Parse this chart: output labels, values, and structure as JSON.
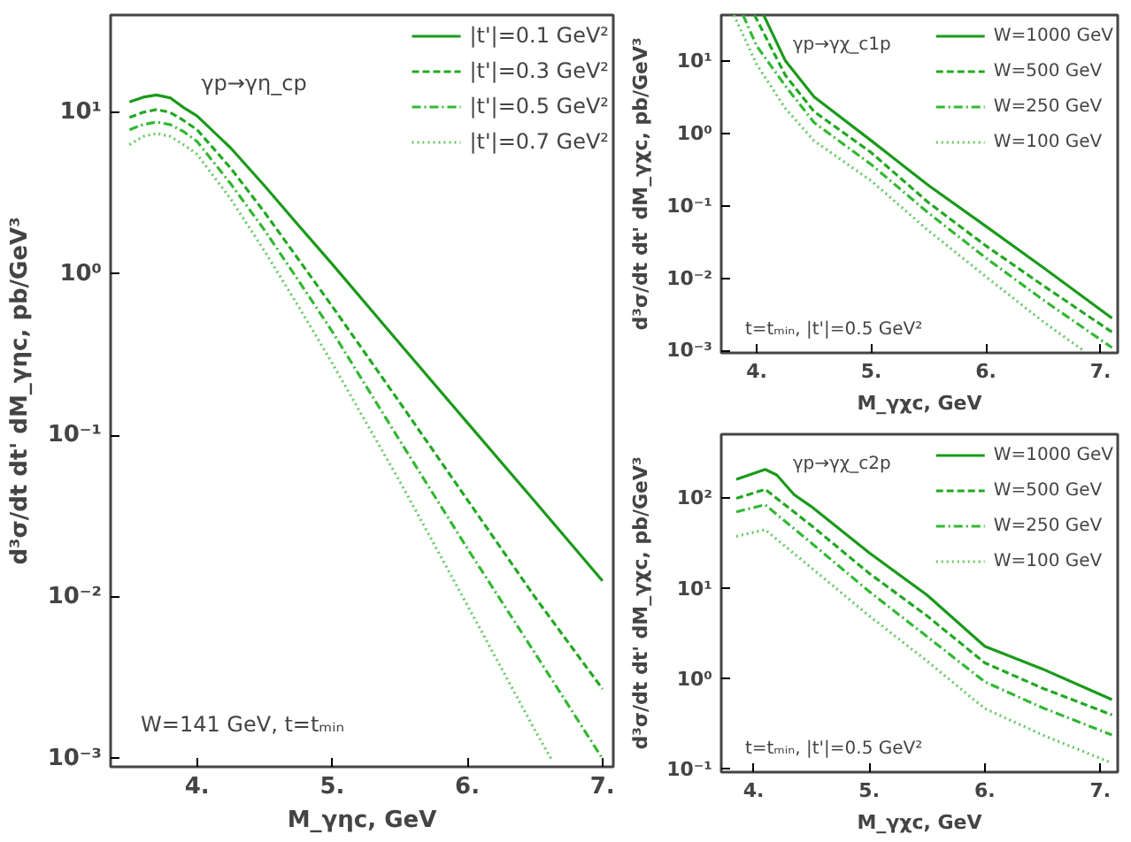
{
  "chart_data": [
    {
      "type": "line",
      "xlabel": "M_γηc, GeV",
      "ylabel": "d³σ/dt dt' dM_γηc, pb/GeV³",
      "log": "y",
      "legend": "top right",
      "annotations": [
        "γp→γη_cp",
        "W=141 GeV, t=tₘᵢₙ"
      ],
      "xlim": [
        3.36,
        7.08
      ],
      "ylim": [
        0.00089,
        40
      ],
      "xticks": [
        {
          "value": 4,
          "label": "4."
        },
        {
          "value": 5,
          "label": "5."
        },
        {
          "value": 6,
          "label": "6."
        },
        {
          "value": 7,
          "label": "7."
        }
      ],
      "yticks": [
        {
          "value": 0.001,
          "label": "10⁻³"
        },
        {
          "value": 0.01,
          "label": "10⁻²"
        },
        {
          "value": 0.1,
          "label": "10⁻¹"
        },
        {
          "value": 1,
          "label": "10⁰"
        },
        {
          "value": 10,
          "label": "10¹"
        }
      ],
      "x": [
        3.5,
        3.6,
        3.7,
        3.8,
        3.9,
        4.0,
        4.25,
        4.5,
        4.75,
        5.0,
        5.5,
        6.0,
        6.5,
        7.0
      ],
      "series": [
        {
          "name": "|t'|=0.1 GeV²",
          "color": "#1a9a1a",
          "line_style": "solid",
          "values": [
            11.6,
            12.4,
            12.8,
            12.3,
            10.7,
            9.5,
            6.0,
            3.5,
            2.0,
            1.15,
            0.37,
            0.12,
            0.039,
            0.0126
          ]
        },
        {
          "name": "|t'|=0.3 GeV²",
          "color": "#22a822",
          "line_style": "dashed",
          "values": [
            9.3,
            10.0,
            10.4,
            10.0,
            8.9,
            7.8,
            4.5,
            2.4,
            1.23,
            0.63,
            0.16,
            0.04,
            0.01,
            0.0027
          ]
        },
        {
          "name": "|t'|=0.5 GeV²",
          "color": "#33b833",
          "line_style": "dashdot",
          "values": [
            7.8,
            8.4,
            8.7,
            8.4,
            7.6,
            6.6,
            3.6,
            1.86,
            0.91,
            0.44,
            0.093,
            0.02,
            0.0045,
            0.001
          ]
        },
        {
          "name": "|t'|=0.7 GeV²",
          "color": "#66c866",
          "line_style": "dotted",
          "x": [
            3.5,
            3.6,
            3.7,
            3.8,
            3.9,
            4.0,
            4.25,
            4.5,
            4.75,
            5.0,
            5.5,
            6.0,
            6.5,
            6.62
          ],
          "values": [
            6.3,
            7.1,
            7.4,
            7.1,
            6.3,
            5.5,
            2.9,
            1.38,
            0.63,
            0.28,
            0.052,
            0.0089,
            0.0015,
            0.001
          ]
        }
      ]
    },
    {
      "type": "line",
      "xlabel": "M_γχc, GeV",
      "ylabel": "d³σ/dt dt' dM_γχc, pb/GeV³",
      "log": "y",
      "legend": "top right",
      "annotations": [
        "γp→γχ_c1p",
        "t=tₘᵢₙ, |t'|=0.5 GeV²"
      ],
      "xlim": [
        3.69,
        7.15
      ],
      "ylim": [
        0.00093,
        43
      ],
      "xticks": [
        {
          "value": 4,
          "label": "4."
        },
        {
          "value": 5,
          "label": "5."
        },
        {
          "value": 6,
          "label": "6."
        },
        {
          "value": 7,
          "label": "7."
        }
      ],
      "yticks": [
        {
          "value": 0.001,
          "label": "10⁻³"
        },
        {
          "value": 0.01,
          "label": "10⁻²"
        },
        {
          "value": 0.1,
          "label": "10⁻¹"
        },
        {
          "value": 1,
          "label": "10⁰"
        },
        {
          "value": 10,
          "label": "10¹"
        }
      ],
      "series": [
        {
          "name": "W=1000 GeV",
          "color": "#1a9a1a",
          "line_style": "solid",
          "x": [
            4.06,
            4.25,
            4.5,
            5,
            5.5,
            6,
            6.5,
            7.1
          ],
          "values": [
            43,
            10,
            3.2,
            0.79,
            0.19,
            0.052,
            0.014,
            0.0028
          ]
        },
        {
          "name": "W=500 GeV",
          "color": "#22a822",
          "line_style": "dashed",
          "x": [
            3.98,
            4.25,
            4.5,
            5,
            5.5,
            6,
            6.5,
            7.1
          ],
          "values": [
            43,
            6.3,
            2.0,
            0.54,
            0.11,
            0.028,
            0.0079,
            0.0018
          ]
        },
        {
          "name": "W=250 GeV",
          "color": "#33b833",
          "line_style": "dashdot",
          "x": [
            3.88,
            4.0,
            4.25,
            4.5,
            5,
            5.5,
            6,
            6.5,
            7.1
          ],
          "values": [
            43,
            16,
            4.5,
            1.41,
            0.37,
            0.079,
            0.019,
            0.005,
            0.0011
          ]
        },
        {
          "name": "W=100 GeV",
          "color": "#66c866",
          "line_style": "dotted",
          "x": [
            3.8,
            4.0,
            4.25,
            4.5,
            5,
            5.5,
            6,
            6.5,
            6.85
          ],
          "values": [
            43,
            8.9,
            2.2,
            0.79,
            0.22,
            0.045,
            0.0105,
            0.0025,
            0.001
          ]
        }
      ]
    },
    {
      "type": "line",
      "xlabel": "M_γχc, GeV",
      "ylabel": "d³σ/dt dt' dM_γχc, pb/GeV³",
      "log": "y",
      "legend": "top right",
      "annotations": [
        "γp→γχ_c2p",
        "t=tₘᵢₙ, |t'|=0.5 GeV²"
      ],
      "xlim": [
        3.72,
        7.15
      ],
      "ylim": [
        0.093,
        513
      ],
      "xticks": [
        {
          "value": 4,
          "label": "4."
        },
        {
          "value": 5,
          "label": "5."
        },
        {
          "value": 6,
          "label": "6."
        },
        {
          "value": 7,
          "label": "7."
        }
      ],
      "yticks": [
        {
          "value": 0.1,
          "label": "10⁻¹"
        },
        {
          "value": 1,
          "label": "10⁰"
        },
        {
          "value": 10,
          "label": "10¹"
        },
        {
          "value": 100,
          "label": "10²"
        }
      ],
      "series": [
        {
          "name": "W=1000 GeV",
          "color": "#1a9a1a",
          "line_style": "solid",
          "x": [
            3.85,
            4.1,
            4.2,
            4.35,
            4.5,
            5,
            5.5,
            6,
            6.5,
            7.1
          ],
          "values": [
            162,
            209,
            182,
            110,
            81,
            25,
            8.5,
            2.3,
            1.29,
            0.59
          ]
        },
        {
          "name": "W=500 GeV",
          "color": "#22a822",
          "line_style": "dashed",
          "x": [
            3.85,
            4.1,
            4.5,
            5,
            5.5,
            6,
            6.5,
            7.1
          ],
          "values": [
            100,
            126,
            50,
            14.8,
            5.0,
            1.51,
            0.79,
            0.4
          ]
        },
        {
          "name": "W=250 GeV",
          "color": "#33b833",
          "line_style": "dashdot",
          "x": [
            3.85,
            4.1,
            4.5,
            5,
            5.5,
            6,
            6.5,
            7.1
          ],
          "values": [
            71,
            85,
            32,
            9.3,
            2.95,
            0.93,
            0.48,
            0.24
          ]
        },
        {
          "name": "W=100 GeV",
          "color": "#66c866",
          "line_style": "dotted",
          "x": [
            3.85,
            4.1,
            4.5,
            5,
            5.5,
            6,
            6.5,
            7.1
          ],
          "values": [
            38,
            45,
            17,
            5.0,
            1.58,
            0.47,
            0.24,
            0.117
          ]
        }
      ]
    }
  ]
}
